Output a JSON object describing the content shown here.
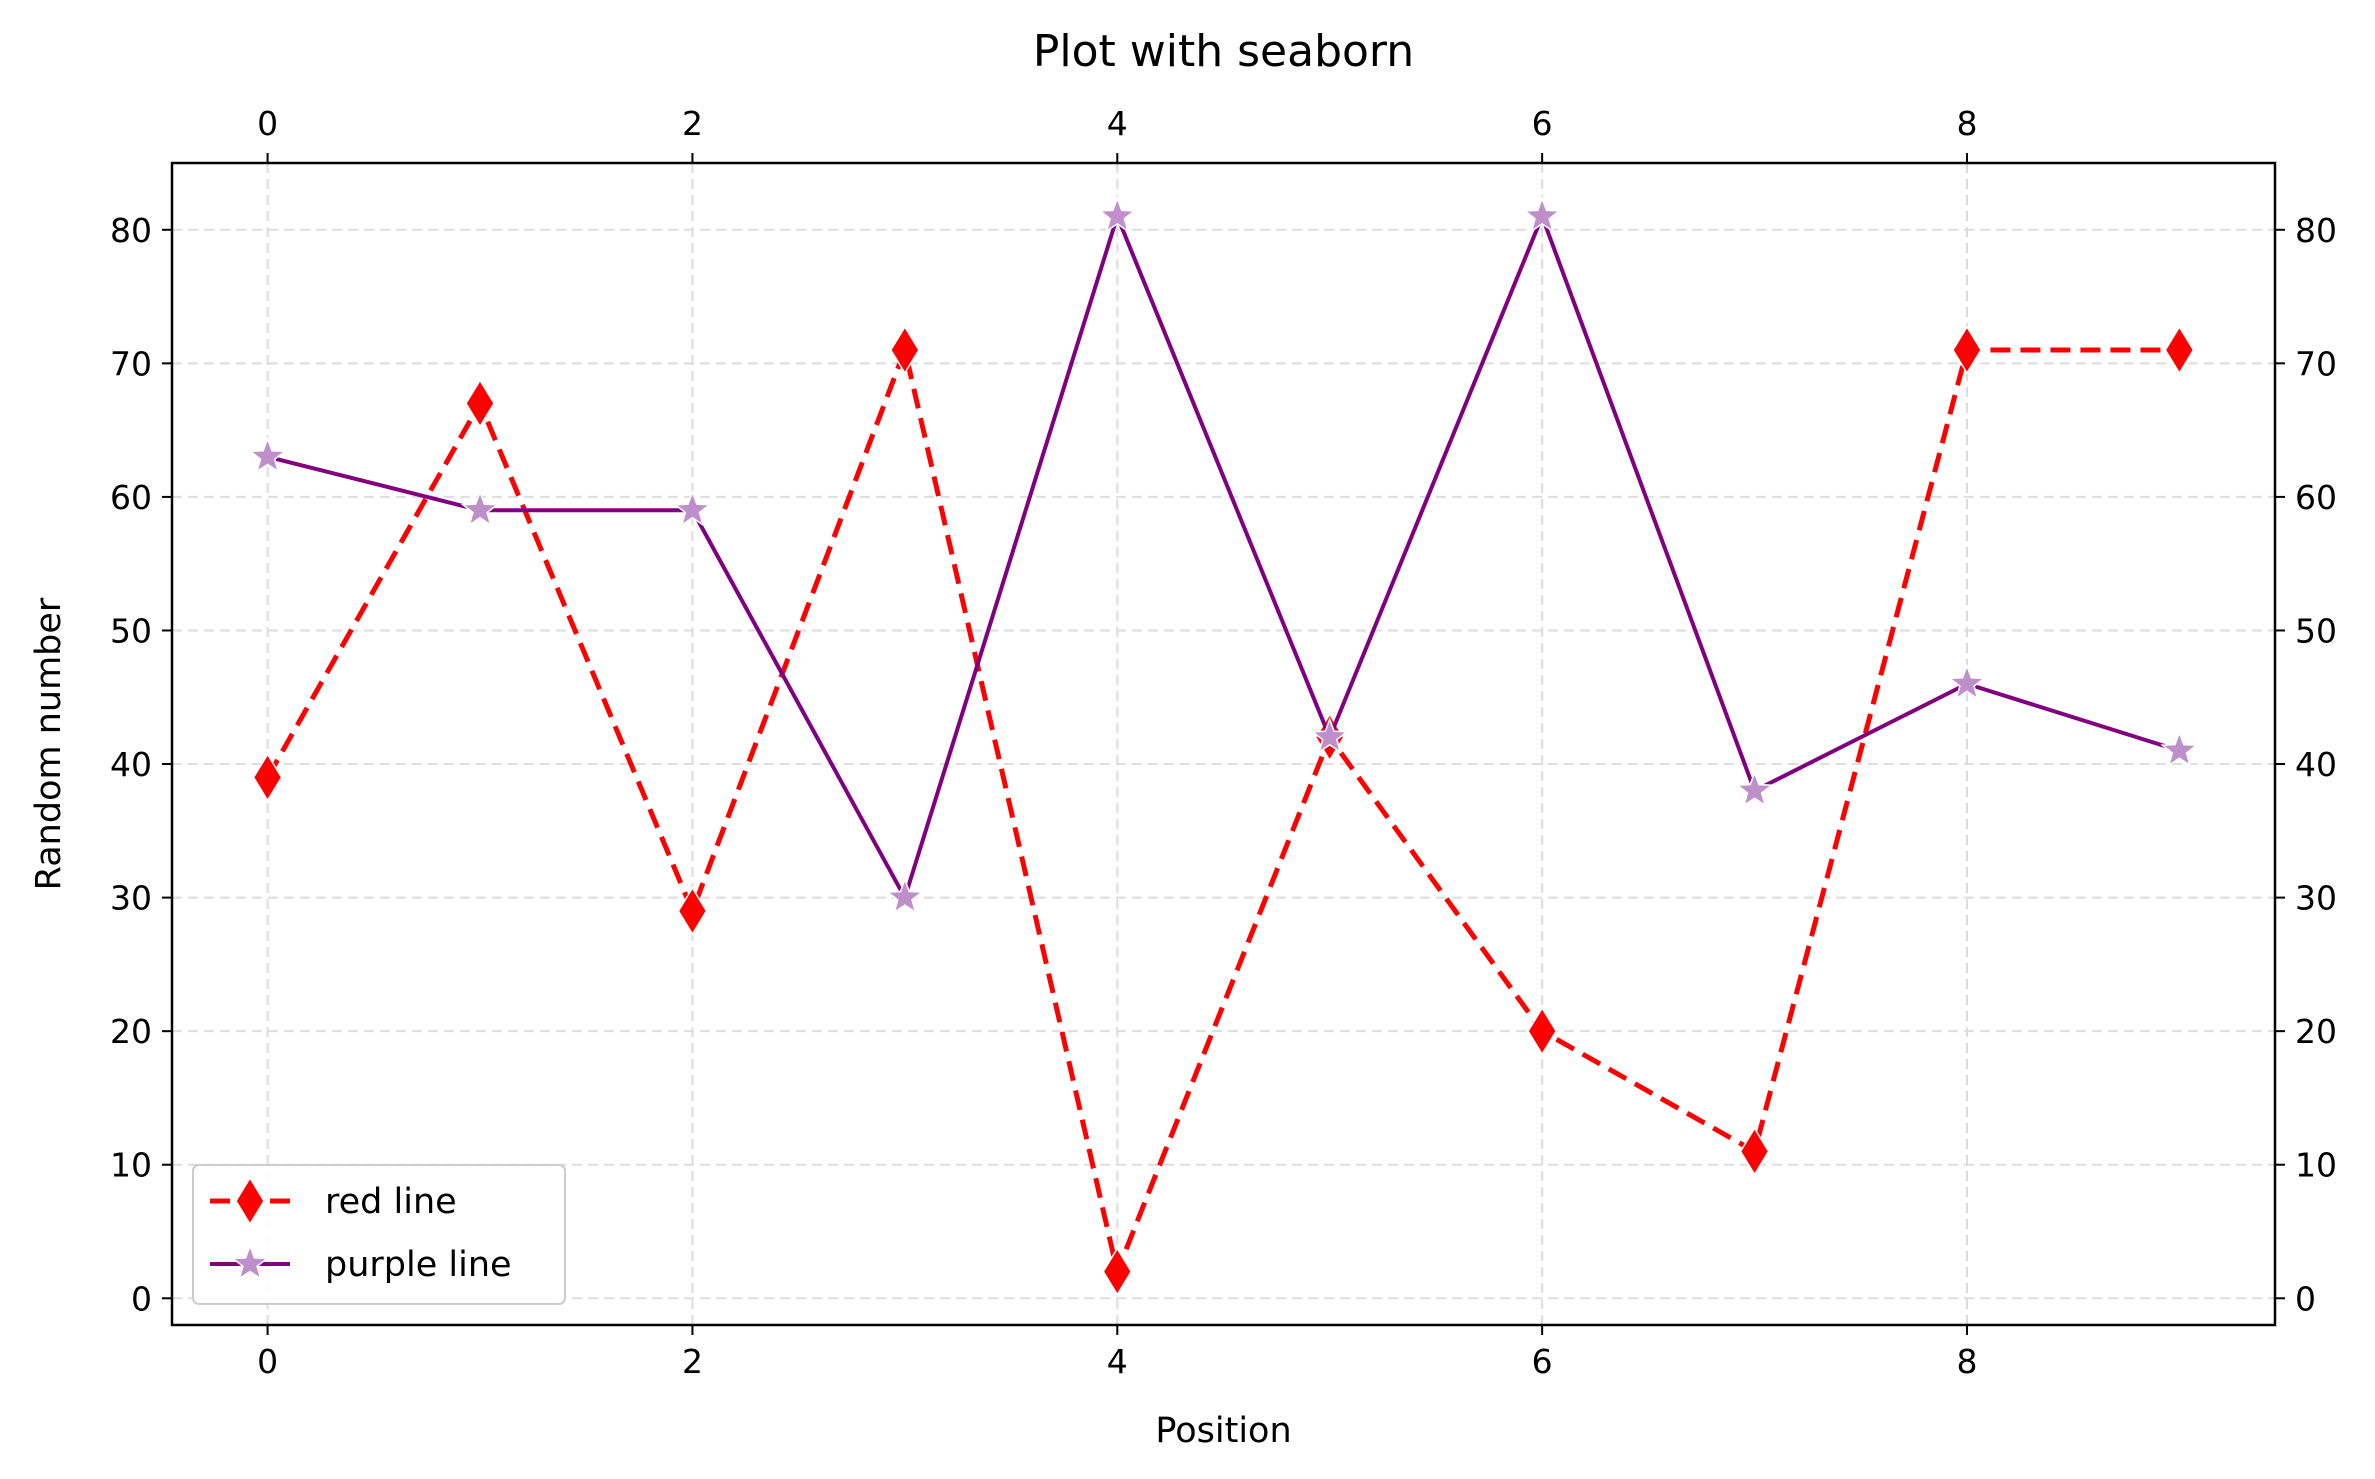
{
  "chart_data": {
    "type": "line",
    "title": "Plot with seaborn",
    "xlabel": "Position",
    "ylabel": "Random number",
    "x": [
      0,
      1,
      2,
      3,
      4,
      5,
      6,
      7,
      8,
      9
    ],
    "xlim": [
      -0.45,
      9.45
    ],
    "ylim": [
      -2,
      85
    ],
    "x_ticks": [
      0,
      2,
      4,
      6,
      8
    ],
    "y_ticks": [
      0,
      10,
      20,
      30,
      40,
      50,
      60,
      70,
      80
    ],
    "secondary_x_axis_top": true,
    "secondary_y_axis_right": true,
    "grid": true,
    "legend_position": "lower-left",
    "series": [
      {
        "name": "red line",
        "values": [
          39,
          67,
          29,
          71,
          2,
          42,
          20,
          11,
          71,
          71
        ],
        "color": "#ff0000",
        "line_style": "dashed",
        "marker": "diamond"
      },
      {
        "name": "purple line",
        "values": [
          63,
          59,
          59,
          30,
          81,
          42,
          81,
          38,
          46,
          41
        ],
        "color": "#800080",
        "marker_color": "#bf8fcc",
        "line_style": "solid",
        "marker": "star"
      }
    ]
  }
}
